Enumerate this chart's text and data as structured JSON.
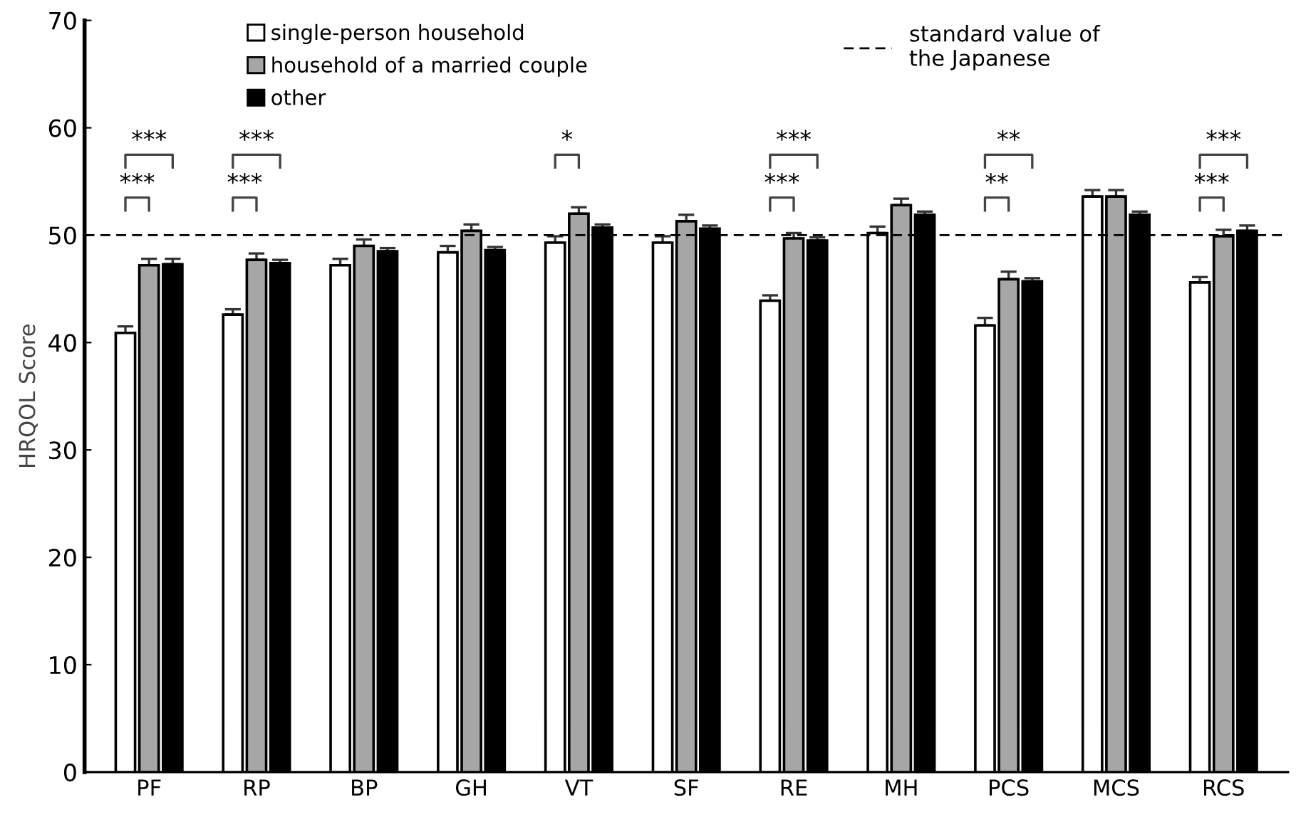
{
  "chart_data": {
    "type": "bar",
    "ylabel": "HRQOL Score",
    "categories": [
      "PF",
      "RP",
      "BP",
      "GH",
      "VT",
      "SF",
      "RE",
      "MH",
      "PCS",
      "MCS",
      "RCS"
    ],
    "series": [
      {
        "name": "single-person household",
        "color": "#ffffff",
        "values": [
          40.9,
          42.6,
          47.2,
          48.4,
          49.3,
          49.3,
          43.9,
          50.2,
          41.6,
          53.6,
          45.6
        ],
        "errors": [
          0.6,
          0.5,
          0.6,
          0.6,
          0.6,
          0.6,
          0.5,
          0.6,
          0.7,
          0.6,
          0.5
        ]
      },
      {
        "name": "household of a married couple",
        "color": "#a6a6a6",
        "values": [
          47.2,
          47.7,
          49.0,
          50.4,
          52.0,
          51.3,
          49.7,
          52.8,
          45.9,
          53.6,
          49.9
        ],
        "errors": [
          0.6,
          0.6,
          0.6,
          0.6,
          0.6,
          0.6,
          0.5,
          0.6,
          0.7,
          0.6,
          0.6
        ]
      },
      {
        "name": "other",
        "color": "#000000",
        "values": [
          47.3,
          47.4,
          48.5,
          48.6,
          50.7,
          50.6,
          49.5,
          51.9,
          45.7,
          51.9,
          50.4
        ],
        "errors": [
          0.5,
          0.3,
          0.3,
          0.3,
          0.3,
          0.3,
          0.3,
          0.3,
          0.3,
          0.3,
          0.5
        ]
      }
    ],
    "ylim": [
      0,
      70
    ],
    "yticks": [
      0,
      10,
      20,
      30,
      40,
      50,
      60,
      70
    ],
    "grid": false,
    "legend": "top left",
    "ref_lines": [
      {
        "axis": "y",
        "value": 50,
        "label": "standard value of\nthe Japanese",
        "color": "#000000",
        "line_style": "dashed"
      }
    ],
    "annotations": [
      "***",
      "***",
      "***",
      "***",
      "*",
      "***",
      "***",
      "**",
      "**",
      "***",
      "***"
    ]
  }
}
